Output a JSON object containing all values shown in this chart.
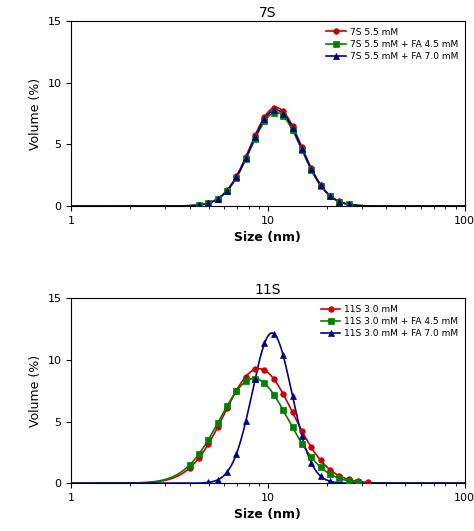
{
  "top_title": "7S",
  "bottom_title": "11S",
  "xlabel": "Size (nm)",
  "ylabel": "Volume (%)",
  "ylim": [
    0,
    15
  ],
  "yticks": [
    0,
    5,
    10,
    15
  ],
  "top_legend": [
    {
      "label": "7S 5.5 mM",
      "color": "#cc0000",
      "marker": "o"
    },
    {
      "label": "7S 5.5 mM + FA 4.5 mM",
      "color": "#008000",
      "marker": "s"
    },
    {
      "label": "7S 5.5 mM + FA 7.0 mM",
      "color": "#00008B",
      "marker": "^"
    }
  ],
  "bottom_legend": [
    {
      "label": "11S 3.0 mM",
      "color": "#cc0000",
      "marker": "o"
    },
    {
      "label": "11S 3.0 mM + FA 4.5 mM",
      "color": "#008000",
      "marker": "s"
    },
    {
      "label": "11S 3.0 mM + FA 7.0 mM",
      "color": "#00008B",
      "marker": "^"
    }
  ],
  "top_series": [
    {
      "peak_nm": 11.0,
      "sigma": 0.13,
      "amplitude": 8.0,
      "color": "#cc0000",
      "marker": "o"
    },
    {
      "peak_nm": 11.0,
      "sigma": 0.13,
      "amplitude": 7.6,
      "color": "#008000",
      "marker": "s"
    },
    {
      "peak_nm": 11.0,
      "sigma": 0.13,
      "amplitude": 7.8,
      "color": "#00008B",
      "marker": "^"
    }
  ],
  "bottom_series": [
    {
      "peak_nm": 9.0,
      "sigma": 0.175,
      "amplitude": 9.3,
      "color": "#cc0000",
      "marker": "o"
    },
    {
      "peak_nm": 8.5,
      "sigma": 0.175,
      "amplitude": 8.5,
      "color": "#008000",
      "marker": "s"
    },
    {
      "peak_nm": 10.5,
      "sigma": 0.1,
      "amplitude": 12.2,
      "color": "#00008B",
      "marker": "^"
    }
  ],
  "marker_size": 4,
  "linewidth": 1.2,
  "n_markers": 22
}
